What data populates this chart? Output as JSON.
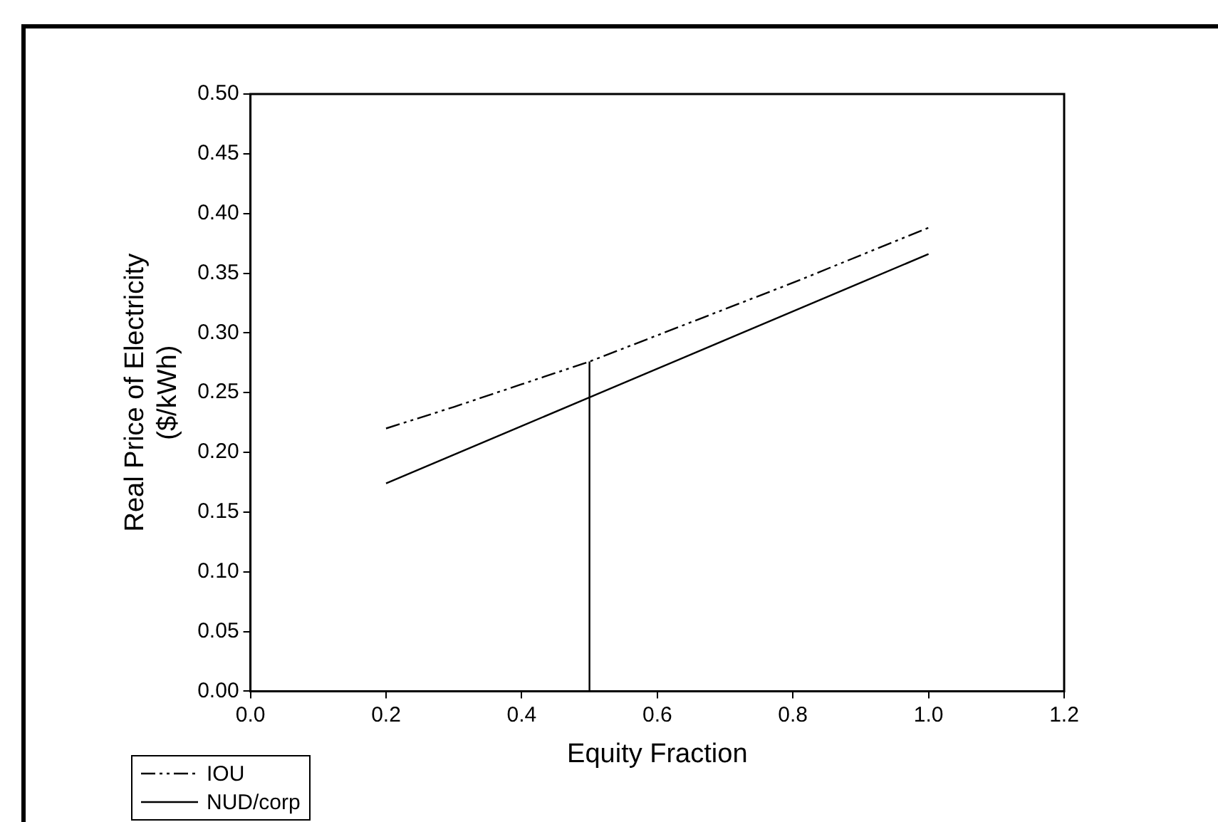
{
  "chart_data": {
    "type": "line",
    "xlabel": "Equity Fraction",
    "ylabel": "Real Price of Electricity\n($/kWh)",
    "x": [
      0.2,
      0.3,
      0.4,
      0.5,
      0.6,
      0.7,
      0.8,
      0.9,
      1.0
    ],
    "series": [
      {
        "name": "IOU",
        "color": "#000000",
        "line_style": "dashed",
        "values": [
          0.22,
          0.238,
          0.257,
          0.276,
          0.298,
          0.32,
          0.342,
          0.365,
          0.388
        ]
      },
      {
        "name": "NUD/corp",
        "color": "#000000",
        "line_style": "solid",
        "values": [
          0.174,
          0.198,
          0.222,
          0.246,
          0.27,
          0.294,
          0.318,
          0.342,
          0.366
        ]
      },
      {
        "type": "line",
        "color": "#000000",
        "line_style": "solid",
        "x": [
          0.5,
          0.5
        ],
        "values": [
          0,
          0.276
        ]
      }
    ],
    "xlim": [
      0,
      1.2
    ],
    "xticks": [
      {
        "value": 0,
        "label": "0.0"
      },
      0.2,
      0.4,
      0.6,
      0.8,
      {
        "value": 1,
        "label": "1.0"
      },
      {
        "value": 1.2,
        "label": "1.2"
      }
    ],
    "ylim": [
      0,
      0.5
    ],
    "yticks": [
      {
        "value": 0,
        "label": "0.00"
      },
      0.05,
      {
        "value": 0.1,
        "label": "0.10"
      },
      0.15,
      {
        "value": 0.2,
        "label": "0.20"
      },
      0.25,
      {
        "value": 0.3,
        "label": "0.30"
      },
      0.35,
      {
        "value": 0.4,
        "label": "0.40"
      },
      0.45,
      {
        "value": 0.5,
        "label": "0.50"
      }
    ],
    "grid": false,
    "legend": "bottom left",
    "marker": "none"
  }
}
